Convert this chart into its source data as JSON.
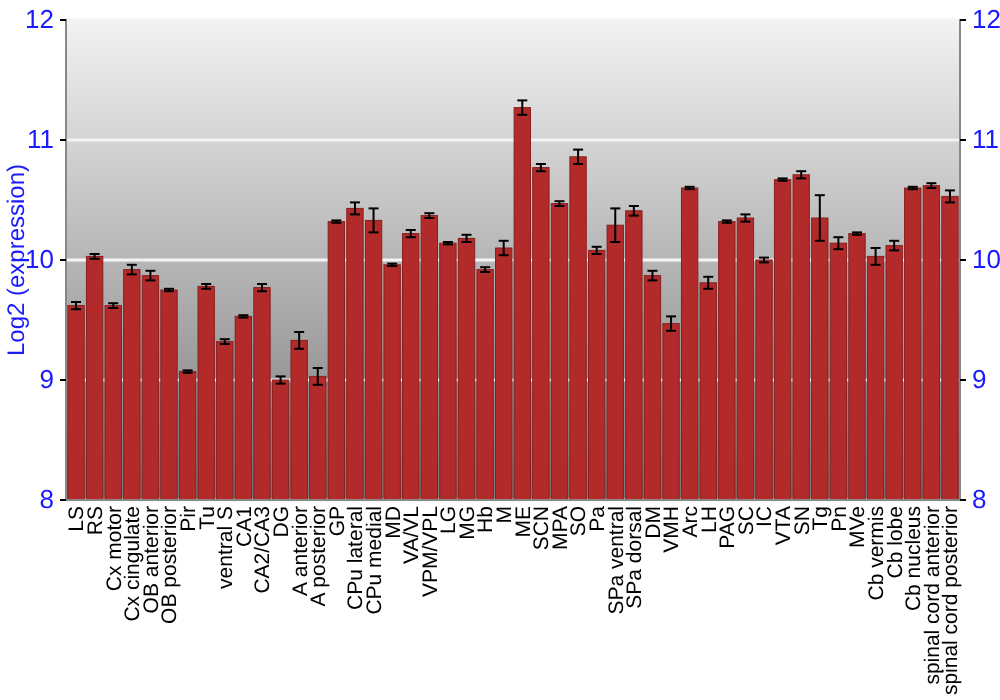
{
  "chart_data": {
    "type": "bar",
    "ylabel": "Log2 (expression)",
    "categories": [
      "LS",
      "RS",
      "Cx motor",
      "Cx cingulate",
      "OB anterior",
      "OB posterior",
      "Pir",
      "Tu",
      "ventral S",
      "CA1",
      "CA2/CA3",
      "DG",
      "A anterior",
      "A posterior",
      "GP",
      "CPu lateral",
      "CPu medial",
      "MD",
      "VA/VL",
      "VPM/VPL",
      "LG",
      "MG",
      "Hb",
      "M",
      "ME",
      "SCN",
      "MPA",
      "SO",
      "Pa",
      "SPa ventral",
      "SPa dorsal",
      "DM",
      "VMH",
      "Arc",
      "LH",
      "PAG",
      "SC",
      "IC",
      "VTA",
      "SN",
      "Tg",
      "Pn",
      "MVe",
      "Cb vermis",
      "Cb lobe",
      "Cb nucleus",
      "spinal cord anterior",
      "spinal cord posterior"
    ],
    "values": [
      9.62,
      10.03,
      9.62,
      9.92,
      9.87,
      9.75,
      9.07,
      9.78,
      9.32,
      9.53,
      9.77,
      9.0,
      9.33,
      9.03,
      10.32,
      10.43,
      10.33,
      9.96,
      10.22,
      10.37,
      10.14,
      10.18,
      9.92,
      10.1,
      11.27,
      10.77,
      10.47,
      10.86,
      10.08,
      10.29,
      10.41,
      9.87,
      9.47,
      10.6,
      9.81,
      10.32,
      10.35,
      10.0,
      10.67,
      10.71,
      10.35,
      10.14,
      10.22,
      10.03,
      10.12,
      10.6,
      10.62,
      10.53
    ],
    "errors": [
      0.03,
      0.02,
      0.02,
      0.04,
      0.04,
      0.01,
      0.01,
      0.02,
      0.02,
      0.01,
      0.03,
      0.03,
      0.07,
      0.07,
      0.01,
      0.05,
      0.1,
      0.01,
      0.03,
      0.02,
      0.01,
      0.03,
      0.02,
      0.06,
      0.06,
      0.03,
      0.02,
      0.06,
      0.03,
      0.14,
      0.04,
      0.04,
      0.06,
      0.01,
      0.05,
      0.01,
      0.03,
      0.02,
      0.01,
      0.03,
      0.19,
      0.05,
      0.01,
      0.07,
      0.04,
      0.01,
      0.02,
      0.05
    ],
    "color": "#b22a2a",
    "ylim": [
      8,
      12
    ],
    "yticks": [
      8,
      9,
      10,
      11,
      12
    ],
    "y2lim": [
      8,
      12
    ],
    "y2ticks": [
      8,
      9,
      10,
      11,
      12
    ],
    "grid": "y"
  }
}
